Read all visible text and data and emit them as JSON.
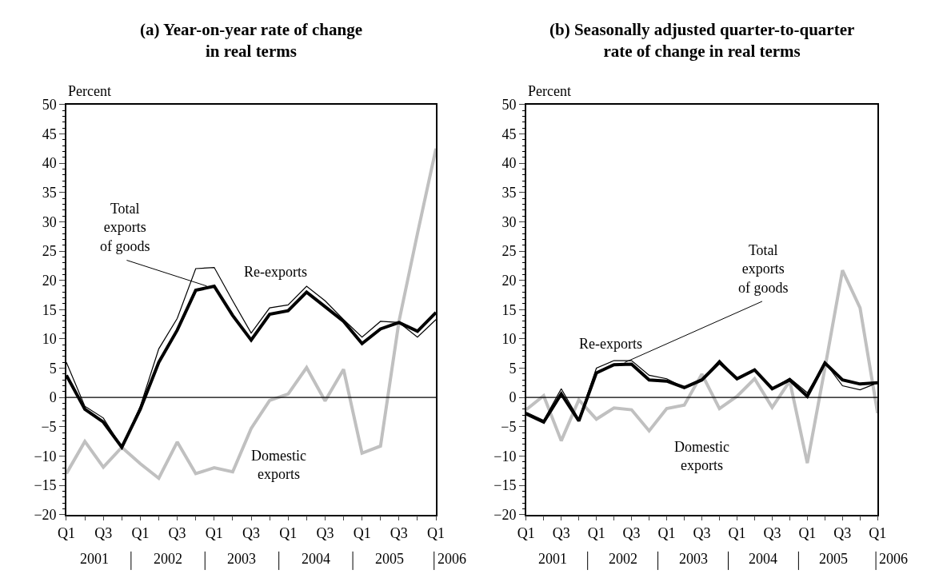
{
  "chart_data": [
    {
      "type": "line",
      "title": "(a) Year-on-year rate of change\nin real terms",
      "ylabel": "Percent",
      "categories": [
        "Q1",
        null,
        "Q3",
        null,
        "Q1",
        null,
        "Q3",
        null,
        "Q1",
        null,
        "Q3",
        null,
        "Q1",
        null,
        "Q3",
        null,
        "Q1",
        null,
        "Q3",
        null,
        "Q1"
      ],
      "annotations": [
        "2001",
        "2002",
        "2003",
        "2004",
        "2005",
        "2006"
      ],
      "series": [
        {
          "name": "Total exports of goods",
          "color": "#000000",
          "values": [
            3.8,
            -2,
            -4.2,
            -8.5,
            -2,
            6,
            11.5,
            18.3,
            19,
            14,
            9.8,
            14.2,
            14.8,
            18,
            15.5,
            13,
            9.2,
            11.7,
            12.8,
            11.3,
            14.5
          ]
        },
        {
          "name": "Re-exports",
          "color": "#000000",
          "values": [
            6,
            -1.5,
            -3.5,
            -8.5,
            -1.5,
            8.3,
            13.5,
            22,
            22.2,
            16.5,
            11,
            15.3,
            15.8,
            19,
            16.5,
            13.3,
            10.3,
            13,
            12.8,
            10.3,
            13.3
          ]
        },
        {
          "name": "Domestic exports",
          "color": "#c0c0c0",
          "values": [
            -13,
            -7.5,
            -11.9,
            -8.5,
            -11.3,
            -13.8,
            -7.6,
            -13,
            -12,
            -12.7,
            -5.3,
            -0.5,
            0.6,
            5.1,
            -0.6,
            4.8,
            -9.5,
            -8.3,
            13,
            28,
            42.5
          ]
        }
      ],
      "ylim": [
        -20,
        50
      ],
      "yticks": [
        -20,
        -15,
        -10,
        -5,
        0,
        5,
        10,
        15,
        20,
        25,
        30,
        35,
        40,
        45,
        50
      ],
      "ref_lines": [
        {
          "axis": "y",
          "value": 0,
          "color": "#000000"
        }
      ],
      "marker": "none",
      "line_style": "solid"
    },
    {
      "type": "line",
      "title": "(b) Seasonally adjusted quarter-to-quarter\nrate of change in real terms",
      "ylabel": "Percent",
      "categories": [
        "Q1",
        null,
        "Q3",
        null,
        "Q1",
        null,
        "Q3",
        null,
        "Q1",
        null,
        "Q3",
        null,
        "Q1",
        null,
        "Q3",
        null,
        "Q1",
        null,
        "Q3",
        null,
        "Q1"
      ],
      "annotations": [
        "2001",
        "2002",
        "2003",
        "2004",
        "2005",
        "2006"
      ],
      "series": [
        {
          "name": "Total exports of goods",
          "color": "#000000",
          "values": [
            -2.8,
            -4.2,
            0.6,
            -4.0,
            4.2,
            5.6,
            5.7,
            3.0,
            2.8,
            1.7,
            3.0,
            6.0,
            3.2,
            4.7,
            1.5,
            3.0,
            0.2,
            5.9,
            3.0,
            2.3,
            2.5
          ]
        },
        {
          "name": "Re-exports",
          "color": "#000000",
          "values": [
            -2.5,
            -3.9,
            1.5,
            -3.7,
            5.0,
            6.3,
            6.3,
            3.8,
            3.2,
            1.7,
            3.0,
            6.4,
            3.2,
            4.7,
            1.5,
            3.3,
            0.8,
            6.0,
            2.0,
            1.3,
            2.5
          ]
        },
        {
          "name": "Domestic exports",
          "color": "#c0c0c0",
          "values": [
            -2.1,
            0.3,
            -7.4,
            -0.4,
            -3.7,
            -1.8,
            -2.1,
            -5.7,
            -1.9,
            -1.3,
            4.0,
            -1.9,
            0.2,
            3.2,
            -1.7,
            2.8,
            -11.2,
            5,
            21.7,
            15.3,
            -2.7
          ]
        }
      ],
      "ylim": [
        -20,
        50
      ],
      "yticks": [
        -20,
        -15,
        -10,
        -5,
        0,
        5,
        10,
        15,
        20,
        25,
        30,
        35,
        40,
        45,
        50
      ],
      "ref_lines": [
        {
          "axis": "y",
          "value": 0,
          "color": "#000000"
        }
      ],
      "marker": "none",
      "line_style": "solid"
    }
  ]
}
